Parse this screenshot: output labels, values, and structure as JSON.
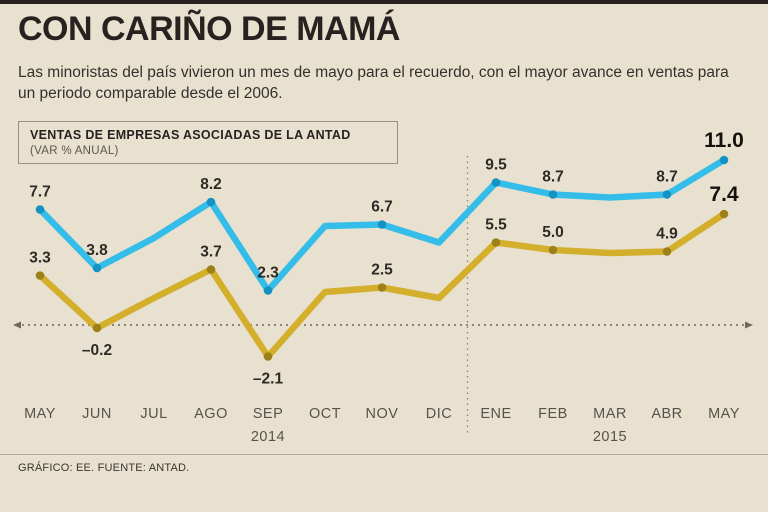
{
  "page": {
    "title": "CON CARIÑO DE MAMÁ",
    "subtitle": "Las minoristas del país vivieron un mes de mayo para el recuerdo, con el mayor avance en ventas para un periodo comparable desde el 2006.",
    "footer": "GRÁFICO: EE. FUENTE: ANTAD."
  },
  "legend": {
    "title": "VENTAS DE EMPRESAS ASOCIADAS DE LA ANTAD",
    "subtitle": "(VAR % ANUAL)"
  },
  "chart_data": {
    "type": "line",
    "title": "VENTAS DE EMPRESAS ASOCIADAS DE LA ANTAD",
    "subtitle": "(VAR % ANUAL)",
    "categories": [
      "MAY",
      "JUN",
      "JUL",
      "AGO",
      "SEP",
      "OCT",
      "NOV",
      "DIC",
      "ENE",
      "FEB",
      "MAR",
      "ABR",
      "MAY"
    ],
    "year_groups": [
      {
        "label": "2014",
        "at_index": 4
      },
      {
        "label": "2015",
        "at_index": 10
      }
    ],
    "separator_between": [
      7,
      8
    ],
    "ylim": [
      -4,
      13
    ],
    "zero_line": true,
    "grid": false,
    "legend_position": "top-left",
    "series": [
      {
        "name": "serie-azul",
        "color": "#35bde9",
        "point_color": "#1592c4",
        "values": [
          7.7,
          3.8,
          5.8,
          8.2,
          2.3,
          6.6,
          6.7,
          5.5,
          9.5,
          8.7,
          8.5,
          8.7,
          11.0
        ],
        "labels": [
          "7.7",
          "3.8",
          null,
          "8.2",
          "2.3",
          null,
          "6.7",
          null,
          "9.5",
          "8.7",
          null,
          "8.7",
          "11.0"
        ],
        "label_side": [
          "above",
          "above",
          null,
          "above",
          "above",
          null,
          "above",
          null,
          "above",
          "above",
          null,
          "above",
          "above"
        ]
      },
      {
        "name": "serie-amarilla",
        "color": "#d3af2c",
        "point_color": "#9e8019",
        "values": [
          3.3,
          -0.2,
          1.8,
          3.7,
          -2.1,
          2.2,
          2.5,
          1.8,
          5.5,
          5.0,
          4.8,
          4.9,
          7.4
        ],
        "labels": [
          "3.3",
          "–0.2",
          null,
          "3.7",
          "–2.1",
          null,
          "2.5",
          null,
          "5.5",
          "5.0",
          null,
          "4.9",
          "7.4"
        ],
        "label_side": [
          "above",
          "below",
          null,
          "above",
          "below",
          null,
          "above",
          null,
          "above",
          "above",
          null,
          "above",
          "above"
        ]
      }
    ]
  }
}
